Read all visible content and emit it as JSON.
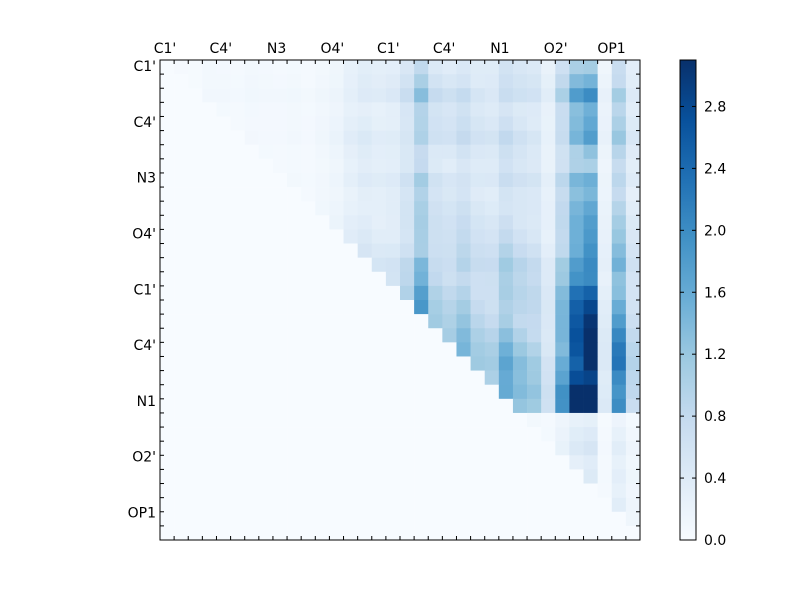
{
  "chart_data": {
    "type": "heatmap",
    "title": "",
    "xlabel": "",
    "ylabel": "",
    "x_tick_labels": [
      "C1'",
      "C4'",
      "N3",
      "O4'",
      "C1'",
      "C4'",
      "N1",
      "O2'",
      "OP1"
    ],
    "y_tick_labels": [
      "C1'",
      "C4'",
      "N3",
      "O4'",
      "C1'",
      "C4'",
      "N1",
      "O2'",
      "OP1"
    ],
    "grid_size": 34,
    "colormap": "Blues",
    "colorbar": {
      "min": 0.0,
      "max": 3.1,
      "tick_values": [
        0.0,
        0.4,
        0.8,
        1.2,
        1.6,
        2.0,
        2.4,
        2.8
      ],
      "tick_labels": [
        "0.0",
        "0.4",
        "0.8",
        "1.2",
        "1.6",
        "2.0",
        "2.4",
        "2.8"
      ]
    },
    "column_means": [
      0.02,
      0.08,
      0.05,
      0.14,
      0.12,
      0.09,
      0.13,
      0.11,
      0.1,
      0.12,
      0.09,
      0.16,
      0.25,
      0.45,
      0.58,
      0.5,
      0.55,
      0.85,
      1.55,
      0.9,
      0.8,
      1.0,
      0.75,
      0.7,
      1.05,
      0.85,
      0.75,
      0.4,
      1.2,
      2.1,
      2.4,
      0.3,
      1.5,
      0.6
    ],
    "row_scale": [
      0.5,
      0.6,
      0.75,
      0.55,
      0.6,
      0.7,
      0.55,
      0.5,
      0.65,
      0.55,
      0.6,
      0.65,
      0.7,
      0.8,
      0.95,
      0.9,
      1.0,
      1.05,
      1.1,
      1.2,
      1.3,
      1.4,
      1.35,
      1.45,
      1.4,
      0.1,
      0.15,
      0.2,
      0.15,
      0.2,
      0.18,
      0.25,
      0.22,
      0.3
    ]
  }
}
